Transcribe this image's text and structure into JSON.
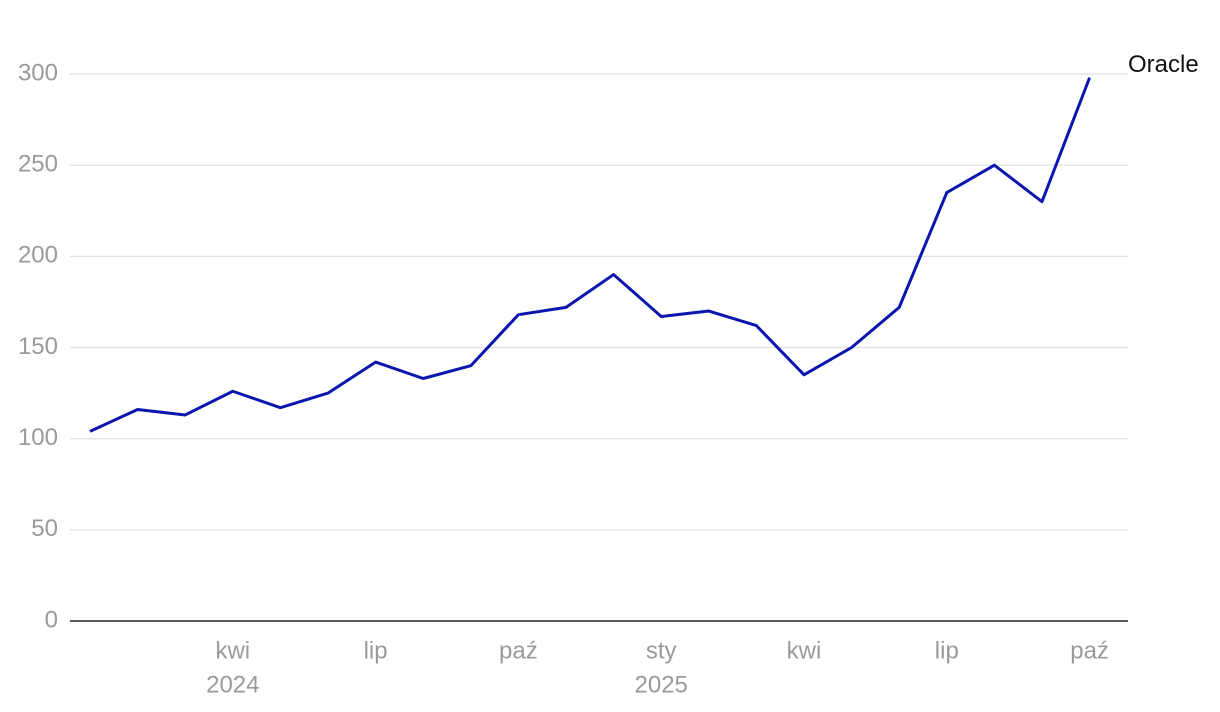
{
  "chart_data": {
    "type": "line",
    "x": [
      "2024-01",
      "2024-02",
      "2024-03",
      "2024-04",
      "2024-05",
      "2024-06",
      "2024-07",
      "2024-08",
      "2024-09",
      "2024-10",
      "2024-11",
      "2024-12",
      "2025-01",
      "2025-02",
      "2025-03",
      "2025-04",
      "2025-05",
      "2025-06",
      "2025-07",
      "2025-08",
      "2025-09",
      "2025-10"
    ],
    "series": [
      {
        "name": "Oracle",
        "color": "#0b16b0",
        "values": [
          104,
          116,
          113,
          126,
          117,
          125,
          142,
          133,
          140,
          168,
          172,
          190,
          167,
          170,
          162,
          135,
          150,
          172,
          235,
          250,
          230,
          298
        ]
      }
    ],
    "ylim": [
      0,
      330
    ],
    "yticks": [
      0,
      50,
      100,
      150,
      200,
      250,
      300
    ],
    "grid": true,
    "xticks": [
      {
        "value": "2024-04",
        "label": "kwi",
        "year": "2024"
      },
      {
        "value": "2024-07",
        "label": "lip"
      },
      {
        "value": "2024-10",
        "label": "paź"
      },
      {
        "value": "2025-01",
        "label": "sty",
        "year": "2025"
      },
      {
        "value": "2025-04",
        "label": "kwi"
      },
      {
        "value": "2025-07",
        "label": "lip"
      },
      {
        "value": "2025-10",
        "label": "paź"
      }
    ]
  }
}
